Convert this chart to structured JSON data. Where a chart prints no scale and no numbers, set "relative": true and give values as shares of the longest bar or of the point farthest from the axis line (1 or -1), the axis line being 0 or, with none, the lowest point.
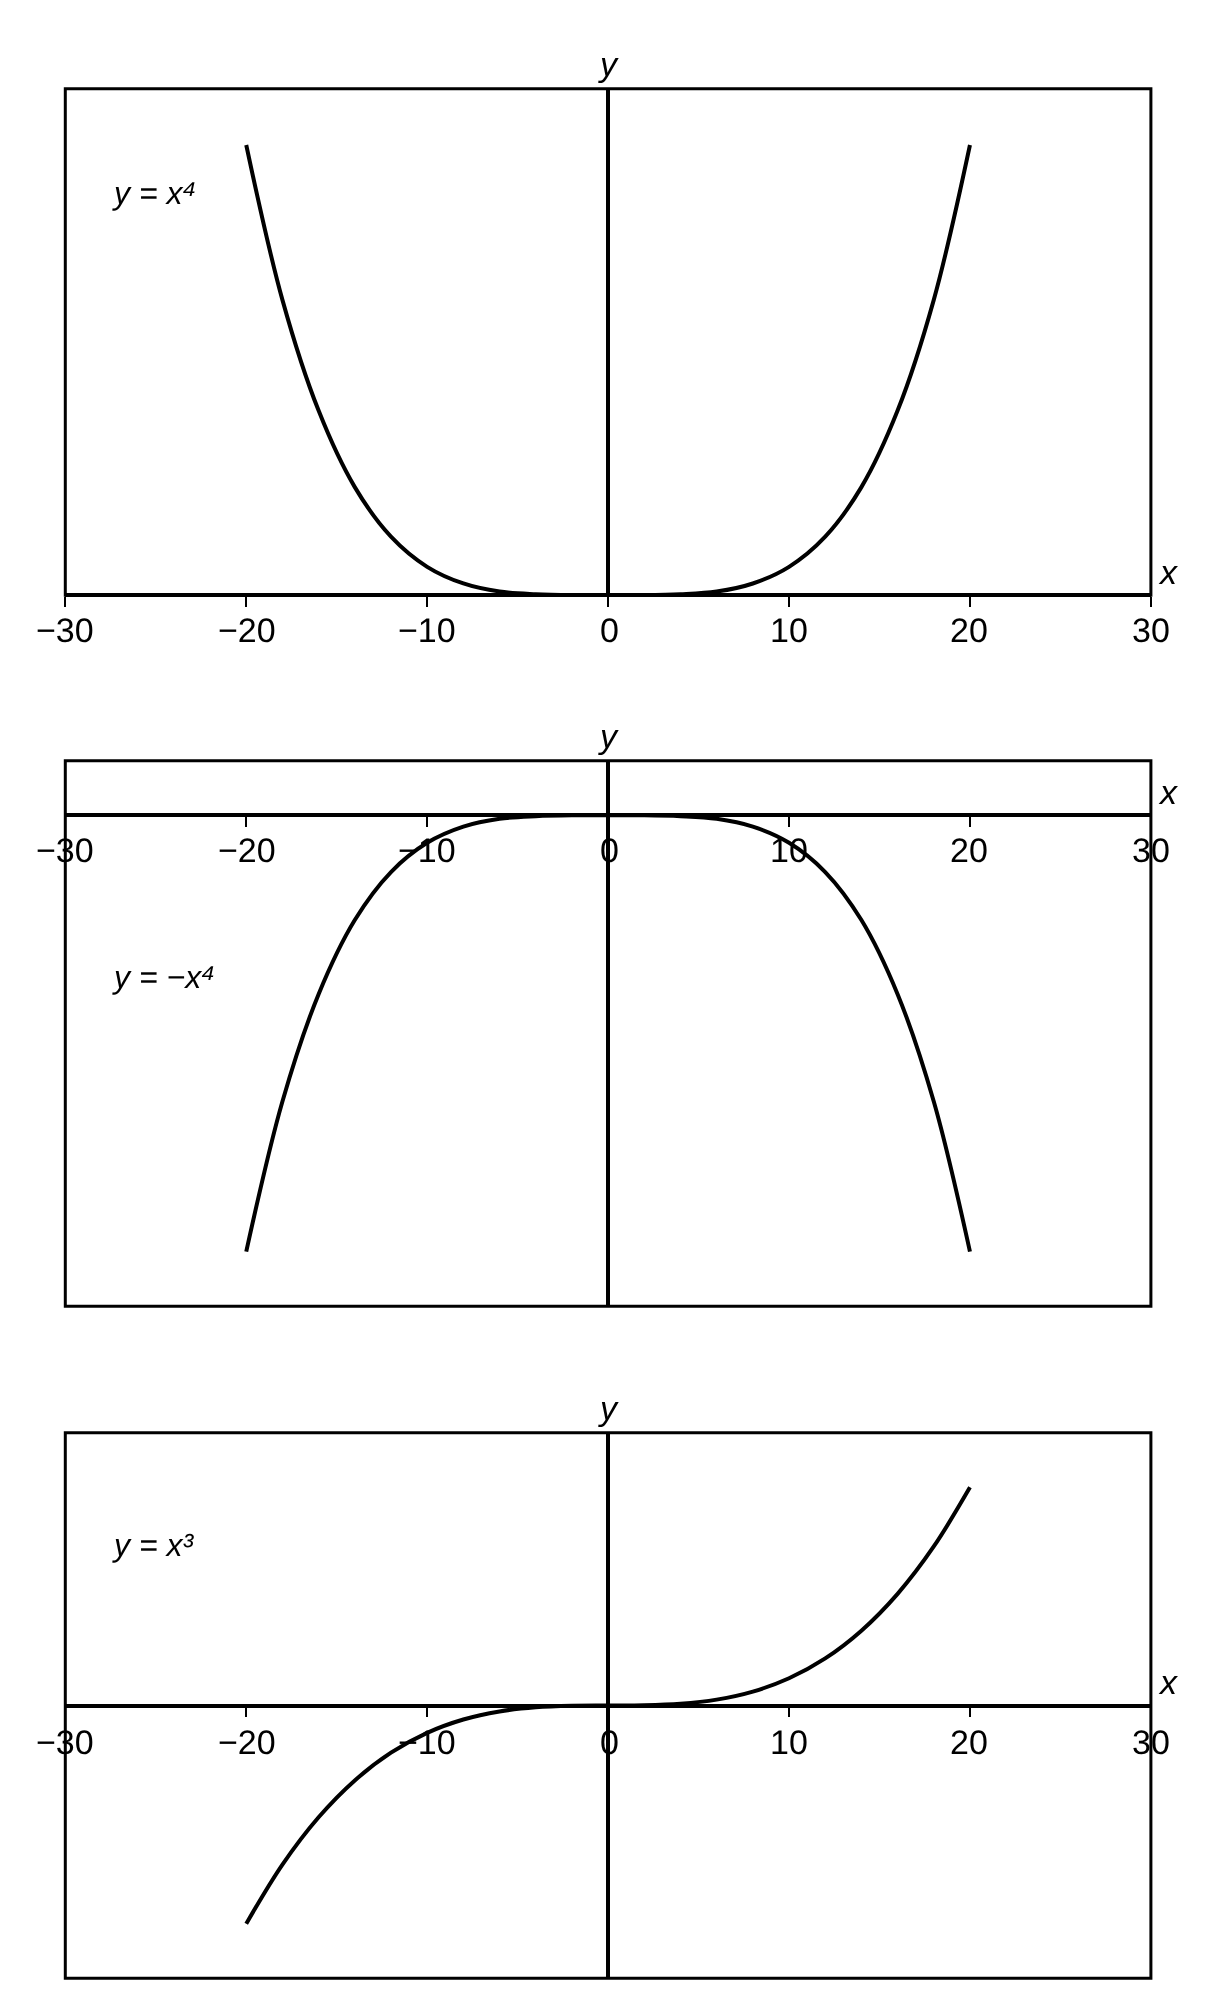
{
  "chart_data": [
    {
      "type": "line",
      "xlabel": "x",
      "ylabel": "y",
      "annotations": [
        "y = x⁴"
      ],
      "relative": true,
      "color": "#000000",
      "xlim": [
        -30,
        30
      ],
      "xticks": [
        -30,
        -20,
        -10,
        0,
        10,
        20,
        30
      ],
      "x": [
        -20,
        -18,
        -16,
        -14,
        -12,
        -10,
        -8,
        -6,
        -4,
        -2,
        0,
        2,
        4,
        6,
        8,
        10,
        12,
        14,
        16,
        18,
        20
      ],
      "values": [
        1,
        0.656,
        0.41,
        0.24,
        0.13,
        0.063,
        0.026,
        0.008,
        0.002,
        0,
        0,
        0,
        0.002,
        0.008,
        0.026,
        0.063,
        0.13,
        0.24,
        0.41,
        0.656,
        1
      ]
    },
    {
      "type": "line",
      "xlabel": "x",
      "ylabel": "y",
      "annotations": [
        "y = −x⁴"
      ],
      "relative": true,
      "color": "#000000",
      "xlim": [
        -30,
        30
      ],
      "xticks": [
        -30,
        -20,
        -10,
        0,
        10,
        20,
        30
      ],
      "x": [
        -20,
        -18,
        -16,
        -14,
        -12,
        -10,
        -8,
        -6,
        -4,
        -2,
        0,
        2,
        4,
        6,
        8,
        10,
        12,
        14,
        16,
        18,
        20
      ],
      "values": [
        -1,
        -0.656,
        -0.41,
        -0.24,
        -0.13,
        -0.063,
        -0.026,
        -0.008,
        -0.002,
        0,
        0,
        0,
        -0.002,
        -0.008,
        -0.026,
        -0.063,
        -0.13,
        -0.24,
        -0.41,
        -0.656,
        -1
      ]
    },
    {
      "type": "line",
      "xlabel": "x",
      "ylabel": "y",
      "annotations": [
        "y = x³"
      ],
      "relative": true,
      "color": "#000000",
      "xlim": [
        -30,
        30
      ],
      "xticks": [
        -30,
        -20,
        -10,
        0,
        10,
        20,
        30
      ],
      "x": [
        -20,
        -18,
        -16,
        -14,
        -12,
        -10,
        -8,
        -6,
        -4,
        -2,
        0,
        2,
        4,
        6,
        8,
        10,
        12,
        14,
        16,
        18,
        20
      ],
      "values": [
        -1,
        -0.729,
        -0.512,
        -0.343,
        -0.216,
        -0.125,
        -0.064,
        -0.027,
        -0.008,
        -0.001,
        0,
        0.001,
        0.008,
        0.027,
        0.064,
        0.125,
        0.216,
        0.343,
        0.512,
        0.729,
        1
      ]
    }
  ]
}
